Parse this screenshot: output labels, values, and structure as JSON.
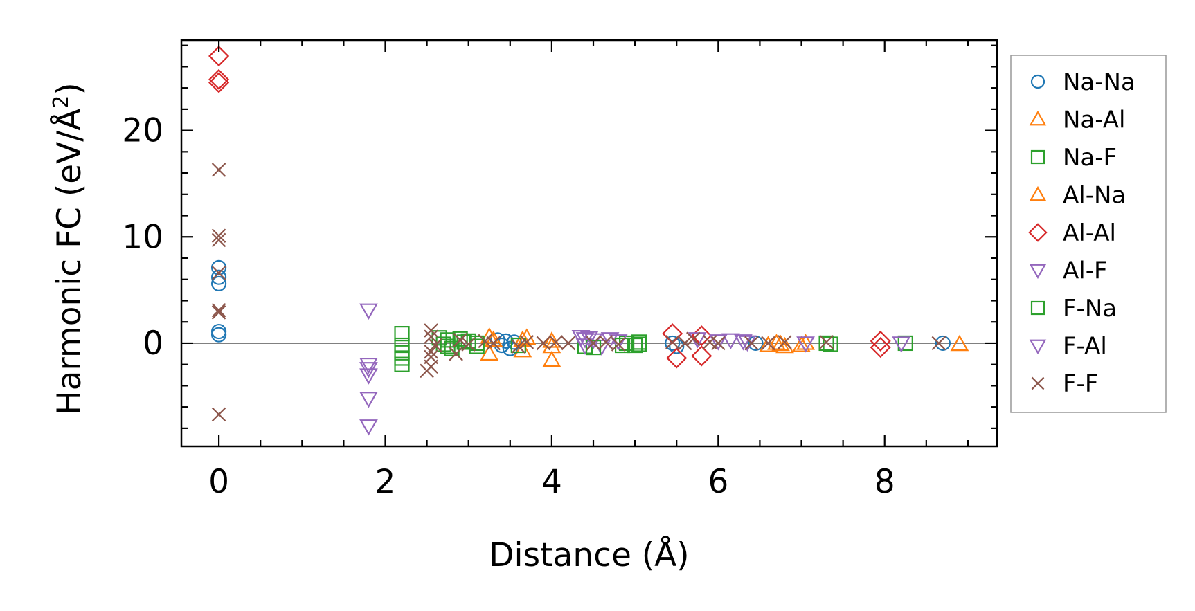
{
  "chart_data": {
    "type": "scatter",
    "title": "",
    "xlabel": "Distance (Å)",
    "ylabel_main": "Harmonic FC (eV/Å",
    "ylabel_sup": "2",
    "ylabel_close": ")",
    "xlim": [
      -0.45,
      9.35
    ],
    "ylim": [
      -9.7,
      28.5
    ],
    "xticks": [
      0,
      2,
      4,
      6,
      8
    ],
    "yticks": [
      0,
      10,
      20
    ],
    "xtick_labels": [
      "0",
      "2",
      "4",
      "6",
      "8"
    ],
    "ytick_labels": [
      "0",
      "10",
      "20"
    ],
    "zero_line": 0,
    "legend_position": "right-outside",
    "series": [
      {
        "name": "Na-Na",
        "marker": "circle",
        "color": "#1f77b4",
        "points": [
          [
            0,
            7.1
          ],
          [
            0,
            6.2
          ],
          [
            0,
            5.6
          ],
          [
            0,
            1.1
          ],
          [
            0,
            0.8
          ],
          [
            3.35,
            0.3
          ],
          [
            3.4,
            -0.2
          ],
          [
            3.45,
            0.2
          ],
          [
            3.5,
            -0.5
          ],
          [
            3.55,
            0.1
          ],
          [
            5.45,
            0.0
          ],
          [
            5.5,
            -0.3
          ],
          [
            6.45,
            0.0
          ],
          [
            8.7,
            0.0
          ]
        ]
      },
      {
        "name": "Na-Al",
        "marker": "triangle-up",
        "color": "#ff7f0e",
        "points": [
          [
            3.25,
            0.6
          ],
          [
            3.25,
            -1.0
          ],
          [
            3.65,
            0.3
          ],
          [
            3.65,
            -0.7
          ],
          [
            4.0,
            -0.3
          ],
          [
            4.0,
            -1.6
          ],
          [
            6.6,
            -0.2
          ],
          [
            6.8,
            -0.3
          ],
          [
            7.0,
            -0.2
          ],
          [
            8.9,
            -0.1
          ]
        ]
      },
      {
        "name": "Na-F",
        "marker": "square",
        "color": "#2ca02c",
        "points": [
          [
            2.2,
            0.9
          ],
          [
            2.2,
            -0.2
          ],
          [
            2.2,
            -0.9
          ],
          [
            2.2,
            -1.4
          ],
          [
            2.2,
            -2.0
          ],
          [
            2.65,
            0.5
          ],
          [
            2.7,
            -0.1
          ],
          [
            2.75,
            0.3
          ],
          [
            2.8,
            -0.5
          ],
          [
            2.9,
            0.4
          ],
          [
            3.0,
            0.2
          ],
          [
            3.1,
            -0.3
          ],
          [
            3.6,
            -0.2
          ],
          [
            4.4,
            -0.3
          ],
          [
            4.9,
            0.0
          ],
          [
            5.0,
            -0.2
          ],
          [
            5.05,
            0.1
          ],
          [
            7.3,
            0.0
          ],
          [
            7.35,
            -0.1
          ],
          [
            8.25,
            0.0
          ]
        ]
      },
      {
        "name": "Al-Na",
        "marker": "triangle-up",
        "color": "#ff7f0e",
        "points": [
          [
            3.3,
            0.3
          ],
          [
            3.7,
            0.5
          ],
          [
            4.0,
            0.2
          ],
          [
            6.7,
            0.0
          ],
          [
            6.75,
            -0.1
          ],
          [
            7.05,
            0.0
          ]
        ]
      },
      {
        "name": "Al-Al",
        "marker": "diamond",
        "color": "#d62728",
        "points": [
          [
            0,
            27.0
          ],
          [
            0,
            24.8
          ],
          [
            0,
            24.5
          ],
          [
            5.45,
            0.9
          ],
          [
            5.5,
            -1.4
          ],
          [
            5.8,
            0.7
          ],
          [
            5.8,
            -1.2
          ],
          [
            7.95,
            0.2
          ],
          [
            7.95,
            -0.4
          ]
        ]
      },
      {
        "name": "Al-F",
        "marker": "triangle-down",
        "color": "#9467bd",
        "points": [
          [
            1.8,
            3.1
          ],
          [
            1.8,
            -2.0
          ],
          [
            1.8,
            -2.4
          ],
          [
            1.8,
            -3.0
          ],
          [
            1.8,
            -5.2
          ],
          [
            1.8,
            -7.8
          ],
          [
            4.35,
            0.6
          ],
          [
            4.4,
            -0.2
          ],
          [
            4.45,
            0.5
          ],
          [
            4.5,
            0.3
          ],
          [
            4.6,
            -0.3
          ],
          [
            4.7,
            0.4
          ],
          [
            5.75,
            0.4
          ],
          [
            6.0,
            0.2
          ],
          [
            6.15,
            0.3
          ],
          [
            6.3,
            0.2
          ]
        ]
      },
      {
        "name": "F-Na",
        "marker": "square",
        "color": "#2ca02c",
        "points": [
          [
            2.75,
            -0.3
          ],
          [
            2.95,
            0.1
          ],
          [
            3.1,
            0.0
          ],
          [
            4.5,
            -0.4
          ],
          [
            4.85,
            -0.2
          ],
          [
            5.05,
            -0.1
          ]
        ]
      },
      {
        "name": "F-Al",
        "marker": "triangle-down",
        "color": "#9467bd",
        "points": [
          [
            4.4,
            0.4
          ],
          [
            4.8,
            0.2
          ],
          [
            6.35,
            0.1
          ],
          [
            7.05,
            0.0
          ],
          [
            8.2,
            0.0
          ]
        ]
      },
      {
        "name": "F-F",
        "marker": "x",
        "color": "#8c564b",
        "points": [
          [
            0,
            16.3
          ],
          [
            0,
            10.1
          ],
          [
            0,
            9.7
          ],
          [
            0,
            6.6
          ],
          [
            0,
            3.1
          ],
          [
            0,
            2.9
          ],
          [
            0,
            -6.7
          ],
          [
            2.55,
            1.2
          ],
          [
            2.55,
            0.6
          ],
          [
            2.6,
            -0.2
          ],
          [
            2.55,
            -0.8
          ],
          [
            2.55,
            -1.3
          ],
          [
            2.55,
            -2.2
          ],
          [
            2.5,
            -2.6
          ],
          [
            2.85,
            -1.0
          ],
          [
            2.9,
            0.3
          ],
          [
            3.0,
            -0.1
          ],
          [
            3.2,
            0.2
          ],
          [
            3.3,
            0.0
          ],
          [
            3.6,
            -0.3
          ],
          [
            3.7,
            0.1
          ],
          [
            3.9,
            0.0
          ],
          [
            4.05,
            0.1
          ],
          [
            4.2,
            0.0
          ],
          [
            4.5,
            0.0
          ],
          [
            4.65,
            0.1
          ],
          [
            4.8,
            -0.1
          ],
          [
            5.45,
            0.1
          ],
          [
            5.6,
            0.0
          ],
          [
            5.7,
            0.4
          ],
          [
            5.9,
            0.1
          ],
          [
            6.0,
            0.0
          ],
          [
            6.4,
            0.0
          ],
          [
            6.6,
            0.0
          ],
          [
            6.8,
            0.1
          ],
          [
            7.3,
            0.1
          ],
          [
            8.65,
            0.0
          ]
        ]
      }
    ]
  }
}
